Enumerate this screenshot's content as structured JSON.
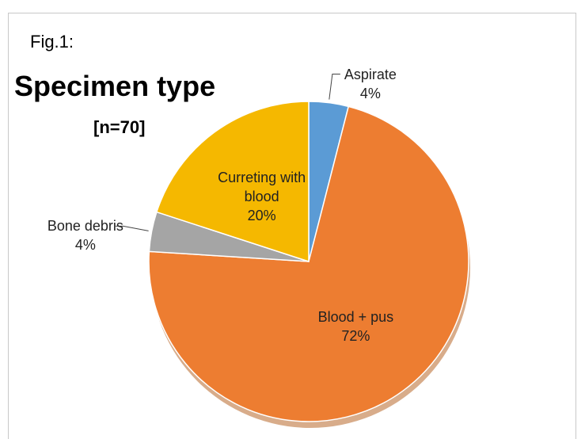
{
  "chart_data": {
    "type": "pie",
    "annotation": "Fig.1:",
    "title": "Specimen type",
    "subtitle": "[n=70]",
    "categories": [
      "Aspirate",
      "Blood + pus",
      "Bone debris",
      "Curreting with blood"
    ],
    "values": [
      4,
      72,
      4,
      20
    ],
    "value_labels": [
      "4%",
      "72%",
      "4%",
      "20%"
    ],
    "colors": [
      "#5b9bd5",
      "#ed7d31",
      "#a5a5a5",
      "#f5b800"
    ],
    "start_angle": -90
  }
}
